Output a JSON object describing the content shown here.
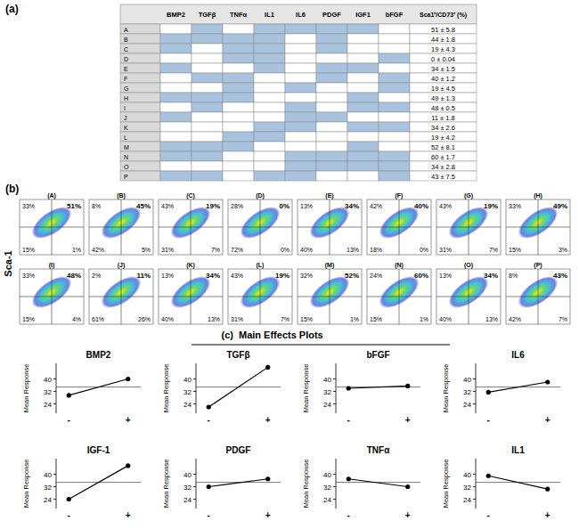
{
  "table": {
    "label": "(a)",
    "columns": [
      "BMP2",
      "TGFβ",
      "TNFα",
      "IL1",
      "IL6",
      "PDGF",
      "IGF1",
      "bFGF",
      "Sca1⁺/CD73⁺ (%)"
    ],
    "rows": [
      {
        "name": "A",
        "cells": [
          false,
          true,
          false,
          true,
          true,
          true,
          true,
          false
        ],
        "value": "51 ± 5.8"
      },
      {
        "name": "B",
        "cells": [
          true,
          true,
          true,
          true,
          false,
          true,
          false,
          false
        ],
        "value": "44 ± 1.8"
      },
      {
        "name": "C",
        "cells": [
          true,
          false,
          true,
          true,
          false,
          true,
          false,
          false
        ],
        "value": "19 ± 4.3"
      },
      {
        "name": "D",
        "cells": [
          false,
          false,
          true,
          true,
          false,
          false,
          false,
          true
        ],
        "value": "0 ± 0.04"
      },
      {
        "name": "E",
        "cells": [
          true,
          false,
          false,
          true,
          false,
          true,
          true,
          false
        ],
        "value": "34 ± 1.5"
      },
      {
        "name": "F",
        "cells": [
          false,
          true,
          true,
          false,
          false,
          true,
          false,
          true
        ],
        "value": "40 ± 1.2"
      },
      {
        "name": "G",
        "cells": [
          false,
          false,
          true,
          false,
          true,
          false,
          false,
          true
        ],
        "value": "19 ± 4.5"
      },
      {
        "name": "H",
        "cells": [
          true,
          true,
          true,
          false,
          false,
          false,
          true,
          false
        ],
        "value": "49 ± 1.3"
      },
      {
        "name": "I",
        "cells": [
          false,
          true,
          false,
          false,
          true,
          false,
          true,
          true
        ],
        "value": "48 ± 0.5"
      },
      {
        "name": "J",
        "cells": [
          true,
          false,
          false,
          false,
          true,
          true,
          false,
          false
        ],
        "value": "11 ± 1.8"
      },
      {
        "name": "K",
        "cells": [
          false,
          false,
          false,
          true,
          true,
          false,
          true,
          true
        ],
        "value": "34 ± 2.6"
      },
      {
        "name": "L",
        "cells": [
          false,
          false,
          true,
          true,
          false,
          false,
          false,
          false
        ],
        "value": "19 ± 4.2"
      },
      {
        "name": "M",
        "cells": [
          true,
          true,
          true,
          false,
          false,
          false,
          true,
          false
        ],
        "value": "52 ± 8.1"
      },
      {
        "name": "N",
        "cells": [
          true,
          true,
          false,
          false,
          true,
          true,
          true,
          true
        ],
        "value": "60 ± 1.7"
      },
      {
        "name": "O",
        "cells": [
          false,
          false,
          false,
          false,
          true,
          true,
          true,
          true
        ],
        "value": "34 ± 2.8"
      },
      {
        "name": "P",
        "cells": [
          true,
          true,
          false,
          true,
          true,
          false,
          false,
          true
        ],
        "value": "43 ± 7.5"
      }
    ]
  },
  "flow": {
    "label": "(b)",
    "y_label": "Sca-1",
    "plots": [
      {
        "name": "(A)",
        "ul": "33%",
        "ur": "51%",
        "ll": "15%",
        "lr": "1%"
      },
      {
        "name": "(B)",
        "ul": "8%",
        "ur": "45%",
        "ll": "42%",
        "lr": "5%"
      },
      {
        "name": "(C)",
        "ul": "43%",
        "ur": "19%",
        "ll": "31%",
        "lr": "7%"
      },
      {
        "name": "(D)",
        "ul": "28%",
        "ur": "0%",
        "ll": "72%",
        "lr": "0%"
      },
      {
        "name": "(E)",
        "ul": "13%",
        "ur": "34%",
        "ll": "40%",
        "lr": "13%"
      },
      {
        "name": "(F)",
        "ul": "42%",
        "ur": "40%",
        "ll": "18%",
        "lr": "0%"
      },
      {
        "name": "(G)",
        "ul": "43%",
        "ur": "19%",
        "ll": "31%",
        "lr": "7%"
      },
      {
        "name": "(H)",
        "ul": "33%",
        "ur": "49%",
        "ll": "15%",
        "lr": "3%"
      },
      {
        "name": "(I)",
        "ul": "33%",
        "ur": "48%",
        "ll": "15%",
        "lr": "4%"
      },
      {
        "name": "(J)",
        "ul": "2%",
        "ur": "11%",
        "ll": "61%",
        "lr": "26%"
      },
      {
        "name": "(K)",
        "ul": "13%",
        "ur": "34%",
        "ll": "40%",
        "lr": "13%"
      },
      {
        "name": "(L)",
        "ul": "43%",
        "ur": "19%",
        "ll": "31%",
        "lr": "7%"
      },
      {
        "name": "(M)",
        "ul": "32%",
        "ur": "52%",
        "ll": "15%",
        "lr": "1%"
      },
      {
        "name": "(N)",
        "ul": "24%",
        "ur": "60%",
        "ll": "15%",
        "lr": "1%"
      },
      {
        "name": "(O)",
        "ul": "13%",
        "ur": "34%",
        "ll": "40%",
        "lr": "13%"
      },
      {
        "name": "(P)",
        "ul": "8%",
        "ur": "43%",
        "ll": "42%",
        "lr": "7%"
      }
    ]
  },
  "effects": {
    "label": "(c)",
    "title": "Main Effects Plots"
  },
  "chart_data": [
    {
      "type": "line",
      "title": "BMP2",
      "y_label": "Mean Response",
      "categories": [
        "-",
        "+"
      ],
      "values": [
        29.5,
        40
      ],
      "ylim": [
        18,
        50
      ],
      "yticks": [
        24,
        32,
        40
      ],
      "reference": 34.8,
      "color": "#000000",
      "marker": "circle"
    },
    {
      "type": "line",
      "title": "TGFβ",
      "y_label": "Mean Response",
      "categories": [
        "-",
        "+"
      ],
      "values": [
        22,
        47.5
      ],
      "ylim": [
        18,
        50
      ],
      "yticks": [
        24,
        32,
        40
      ],
      "reference": 34.8,
      "color": "#000000",
      "marker": "circle"
    },
    {
      "type": "line",
      "title": "bFGF",
      "y_label": "Mean Response",
      "categories": [
        "-",
        "+"
      ],
      "values": [
        34,
        35.5
      ],
      "ylim": [
        18,
        50
      ],
      "yticks": [
        24,
        32,
        40
      ],
      "reference": 34.8,
      "color": "#000000",
      "marker": "circle"
    },
    {
      "type": "line",
      "title": "IL6",
      "y_label": "Mean Response",
      "categories": [
        "-",
        "+"
      ],
      "values": [
        31.5,
        38
      ],
      "ylim": [
        18,
        50
      ],
      "yticks": [
        24,
        32,
        40
      ],
      "reference": 34.8,
      "color": "#000000",
      "marker": "circle"
    },
    {
      "type": "line",
      "title": "IGF-1",
      "y_label": "Mean Response",
      "categories": [
        "-",
        "+"
      ],
      "values": [
        24,
        45.5
      ],
      "ylim": [
        18,
        50
      ],
      "yticks": [
        24,
        32,
        40
      ],
      "reference": 34.8,
      "color": "#000000",
      "marker": "circle"
    },
    {
      "type": "line",
      "title": "PDGF",
      "y_label": "Mean Response",
      "categories": [
        "-",
        "+"
      ],
      "values": [
        32,
        37
      ],
      "ylim": [
        18,
        50
      ],
      "yticks": [
        24,
        32,
        40
      ],
      "reference": 34.8,
      "color": "#000000",
      "marker": "circle"
    },
    {
      "type": "line",
      "title": "TNFα",
      "y_label": "Mean Response",
      "categories": [
        "-",
        "+"
      ],
      "values": [
        37,
        32
      ],
      "ylim": [
        18,
        50
      ],
      "yticks": [
        24,
        32,
        40
      ],
      "reference": 34.8,
      "color": "#000000",
      "marker": "circle"
    },
    {
      "type": "line",
      "title": "IL1",
      "y_label": "Mean Response",
      "categories": [
        "-",
        "+"
      ],
      "values": [
        39,
        30.5
      ],
      "ylim": [
        18,
        50
      ],
      "yticks": [
        24,
        32,
        40
      ],
      "reference": 34.8,
      "color": "#000000",
      "marker": "circle"
    }
  ]
}
